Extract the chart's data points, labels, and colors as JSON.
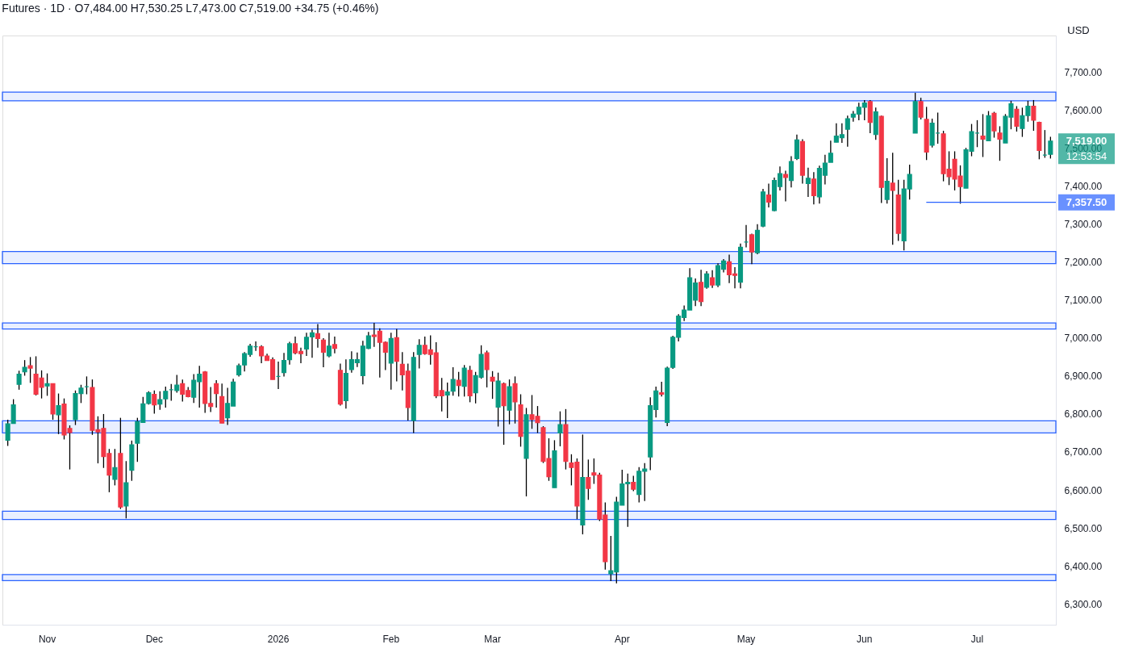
{
  "chart_data": {
    "type": "candlestick",
    "title": "Futures · 1D · O7,484.00 H7,530.25 L7,473.00 C7,519.00 +34.75 (+0.46%)",
    "categories": [
      null,
      null,
      null,
      null,
      null,
      null,
      null,
      "Nov",
      null,
      null,
      null,
      null,
      null,
      null,
      null,
      null,
      null,
      null,
      null,
      null,
      null,
      null,
      null,
      null,
      null,
      null,
      "Dec",
      null,
      null,
      null,
      null,
      null,
      null,
      null,
      null,
      null,
      null,
      null,
      null,
      null,
      null,
      null,
      null,
      null,
      null,
      null,
      null,
      null,
      "2026",
      null,
      null,
      null,
      null,
      null,
      null,
      null,
      null,
      null,
      null,
      null,
      null,
      null,
      null,
      null,
      null,
      null,
      null,
      null,
      "Feb",
      null,
      null,
      null,
      null,
      null,
      null,
      null,
      null,
      null,
      null,
      null,
      null,
      null,
      null,
      null,
      null,
      null,
      "Mar",
      null,
      null,
      null,
      null,
      null,
      null,
      null,
      null,
      null,
      null,
      null,
      null,
      null,
      null,
      null,
      null,
      null,
      null,
      null,
      null,
      null,
      null,
      "Apr",
      null,
      null,
      null,
      null,
      null,
      null,
      null,
      null,
      null,
      null,
      null,
      null,
      null,
      null,
      null,
      null,
      null,
      null,
      null,
      null,
      null,
      "May",
      null,
      null,
      null,
      null,
      null,
      null,
      null,
      null,
      null,
      null,
      null,
      null,
      null,
      null,
      null,
      null,
      null,
      null,
      null,
      null,
      "Jun",
      null,
      null,
      null,
      null,
      null,
      null,
      null,
      null,
      null,
      null,
      null,
      null,
      null,
      null,
      null,
      null,
      null,
      null,
      null,
      "Jul",
      null,
      null,
      null,
      null,
      null,
      null,
      null,
      null,
      null,
      null,
      null,
      null,
      null
    ],
    "ohlc": [
      [
        6731,
        6785,
        6716,
        6774
      ],
      [
        6775,
        6839,
        6775,
        6824
      ],
      [
        6878,
        6914,
        6864,
        6905
      ],
      [
        6911,
        6942,
        6901,
        6923
      ],
      [
        6927,
        6950,
        6882,
        6921
      ],
      [
        6905,
        6952,
        6849,
        6852
      ],
      [
        6895,
        6915,
        6841,
        6870
      ],
      [
        6874,
        6907,
        6848,
        6880
      ],
      [
        6880,
        6880,
        6785,
        6800
      ],
      [
        6798,
        6854,
        6747,
        6822
      ],
      [
        6826,
        6841,
        6733,
        6745
      ],
      [
        6762,
        6770,
        6654,
        6751
      ],
      [
        6785,
        6862,
        6771,
        6854
      ],
      [
        6854,
        6877,
        6829,
        6868
      ],
      [
        6872,
        6899,
        6852,
        6872
      ],
      [
        6870,
        6891,
        6745,
        6757
      ],
      [
        6759,
        6794,
        6670,
        6753
      ],
      [
        6762,
        6800,
        6658,
        6688
      ],
      [
        6696,
        6708,
        6594,
        6639
      ],
      [
        6628,
        6708,
        6612,
        6659
      ],
      [
        6696,
        6790,
        6550,
        6555
      ],
      [
        6558,
        6676,
        6525,
        6619
      ],
      [
        6652,
        6730,
        6624,
        6719
      ],
      [
        6723,
        6790,
        6674,
        6780
      ],
      [
        6778,
        6845,
        6778,
        6827
      ],
      [
        6828,
        6860,
        6825,
        6856
      ],
      [
        6852,
        6862,
        6801,
        6824
      ],
      [
        6826,
        6860,
        6811,
        6838
      ],
      [
        6840,
        6872,
        6817,
        6860
      ],
      [
        6864,
        6879,
        6835,
        6864
      ],
      [
        6862,
        6903,
        6856,
        6876
      ],
      [
        6880,
        6891,
        6833,
        6852
      ],
      [
        6862,
        6871,
        6844,
        6846
      ],
      [
        6844,
        6905,
        6829,
        6889
      ],
      [
        6885,
        6927,
        6817,
        6905
      ],
      [
        6911,
        6913,
        6803,
        6828
      ],
      [
        6828,
        6871,
        6805,
        6820
      ],
      [
        6880,
        6889,
        6817,
        6854
      ],
      [
        6846,
        6880,
        6776,
        6776
      ],
      [
        6790,
        6869,
        6771,
        6828
      ],
      [
        6821,
        6893,
        6821,
        6884
      ],
      [
        6903,
        6933,
        6899,
        6927
      ],
      [
        6929,
        6963,
        6912,
        6959
      ],
      [
        6957,
        6985,
        6951,
        6979
      ],
      [
        6977,
        6991,
        6966,
        6977
      ],
      [
        6977,
        6981,
        6934,
        6953
      ],
      [
        6953,
        6959,
        6941,
        6941
      ],
      [
        6943,
        6949,
        6891,
        6891
      ],
      [
        6899,
        6938,
        6866,
        6899
      ],
      [
        6909,
        6961,
        6899,
        6941
      ],
      [
        6943,
        6990,
        6930,
        6985
      ],
      [
        6985,
        7004,
        6957,
        6961
      ],
      [
        6965,
        6975,
        6934,
        6959
      ],
      [
        6971,
        7014,
        6953,
        7002
      ],
      [
        7003,
        7022,
        6948,
        7014
      ],
      [
        7012,
        7037,
        6975,
        6999
      ],
      [
        6995,
        7000,
        6923,
        6963
      ],
      [
        6953,
        7014,
        6949,
        6979
      ],
      [
        6983,
        7004,
        6960,
        6973
      ],
      [
        6915,
        6933,
        6822,
        6826
      ],
      [
        6835,
        6944,
        6814,
        6907
      ],
      [
        6917,
        6965,
        6909,
        6943
      ],
      [
        6935,
        6962,
        6924,
        6943
      ],
      [
        6901,
        6993,
        6878,
        6979
      ],
      [
        6973,
        7016,
        6971,
        7006
      ],
      [
        7008,
        7040,
        6977,
        7004
      ],
      [
        7018,
        7026,
        6896,
        6989
      ],
      [
        6989,
        6991,
        6916,
        6963
      ],
      [
        6934,
        7014,
        6864,
        6999
      ],
      [
        7001,
        7024,
        6886,
        6939
      ],
      [
        6931,
        6963,
        6862,
        6903
      ],
      [
        6913,
        6933,
        6783,
        6817
      ],
      [
        6783,
        6963,
        6750,
        6949
      ],
      [
        6957,
        6997,
        6920,
        6981
      ],
      [
        6981,
        7004,
        6956,
        6959
      ],
      [
        6969,
        7007,
        6930,
        6957
      ],
      [
        6961,
        6989,
        6842,
        6848
      ],
      [
        6862,
        6895,
        6807,
        6848
      ],
      [
        6850,
        6883,
        6789,
        6858
      ],
      [
        6860,
        6923,
        6848,
        6891
      ],
      [
        6889,
        6911,
        6846,
        6875
      ],
      [
        6873,
        6929,
        6846,
        6921
      ],
      [
        6915,
        6927,
        6831,
        6848
      ],
      [
        6856,
        6911,
        6828,
        6901
      ],
      [
        6897,
        6981,
        6893,
        6957
      ],
      [
        6961,
        6967,
        6870,
        6917
      ],
      [
        6897,
        6913,
        6840,
        6887
      ],
      [
        6818,
        6909,
        6767,
        6887
      ],
      [
        6880,
        6883,
        6719,
        6822
      ],
      [
        6810,
        6891,
        6773,
        6872
      ],
      [
        6880,
        6899,
        6775,
        6832
      ],
      [
        6824,
        6852,
        6714,
        6741
      ],
      [
        6683,
        6816,
        6583,
        6798
      ],
      [
        6798,
        6850,
        6761,
        6786
      ],
      [
        6794,
        6821,
        6750,
        6777
      ],
      [
        6764,
        6768,
        6671,
        6675
      ],
      [
        6683,
        6736,
        6624,
        6635
      ],
      [
        6606,
        6731,
        6606,
        6703
      ],
      [
        6750,
        6807,
        6715,
        6772
      ],
      [
        6772,
        6813,
        6654,
        6675
      ],
      [
        6671,
        6694,
        6612,
        6659
      ],
      [
        6673,
        6683,
        6523,
        6558
      ],
      [
        6508,
        6746,
        6483,
        6633
      ],
      [
        6633,
        6680,
        6574,
        6604
      ],
      [
        6645,
        6683,
        6616,
        6639
      ],
      [
        6639,
        6645,
        6518,
        6523
      ],
      [
        6534,
        6567,
        6390,
        6411
      ],
      [
        6379,
        6479,
        6360,
        6387
      ],
      [
        6384,
        6582,
        6354,
        6568
      ],
      [
        6560,
        6653,
        6560,
        6616
      ],
      [
        6616,
        6643,
        6503,
        6620
      ],
      [
        6620,
        6637,
        6597,
        6602
      ],
      [
        6588,
        6660,
        6567,
        6649
      ],
      [
        6649,
        6671,
        6571,
        6655
      ],
      [
        6687,
        6844,
        6652,
        6822
      ],
      [
        6812,
        6872,
        6791,
        6861
      ],
      [
        6856,
        6885,
        6846,
        6852
      ],
      [
        6778,
        6925,
        6768,
        6921
      ],
      [
        6923,
        7006,
        6919,
        7002
      ],
      [
        7002,
        7063,
        6991,
        7058
      ],
      [
        7054,
        7086,
        7045,
        7074
      ],
      [
        7074,
        7184,
        7074,
        7159
      ],
      [
        7100,
        7157,
        7084,
        7145
      ],
      [
        7147,
        7180,
        7084,
        7096
      ],
      [
        7134,
        7176,
        7130,
        7169
      ],
      [
        7159,
        7179,
        7132,
        7140
      ],
      [
        7140,
        7197,
        7134,
        7191
      ],
      [
        7181,
        7208,
        7173,
        7203
      ],
      [
        7201,
        7220,
        7145,
        7167
      ],
      [
        7169,
        7187,
        7131,
        7165
      ],
      [
        7147,
        7249,
        7131,
        7239
      ],
      [
        7253,
        7298,
        7239,
        7253
      ],
      [
        7272,
        7275,
        7195,
        7227
      ],
      [
        7225,
        7300,
        7221,
        7284
      ],
      [
        7295,
        7393,
        7292,
        7385
      ],
      [
        7377,
        7407,
        7344,
        7358
      ],
      [
        7336,
        7423,
        7334,
        7415
      ],
      [
        7399,
        7452,
        7389,
        7433
      ],
      [
        7431,
        7441,
        7360,
        7423
      ],
      [
        7415,
        7479,
        7397,
        7465
      ],
      [
        7473,
        7536,
        7469,
        7522
      ],
      [
        7518,
        7524,
        7407,
        7429
      ],
      [
        7407,
        7449,
        7372,
        7421
      ],
      [
        7419,
        7437,
        7352,
        7375
      ],
      [
        7372,
        7454,
        7354,
        7447
      ],
      [
        7429,
        7483,
        7405,
        7461
      ],
      [
        7463,
        7520,
        7463,
        7487
      ],
      [
        7516,
        7566,
        7516,
        7532
      ],
      [
        7528,
        7566,
        7514,
        7536
      ],
      [
        7550,
        7586,
        7504,
        7578
      ],
      [
        7582,
        7598,
        7570,
        7590
      ],
      [
        7590,
        7620,
        7574,
        7608
      ],
      [
        7608,
        7627,
        7574,
        7619
      ],
      [
        7623,
        7627,
        7540,
        7568
      ],
      [
        7536,
        7607,
        7522,
        7596
      ],
      [
        7584,
        7586,
        7356,
        7397
      ],
      [
        7365,
        7474,
        7354,
        7413
      ],
      [
        7408,
        7488,
        7246,
        7389
      ],
      [
        7377,
        7417,
        7256,
        7276
      ],
      [
        7256,
        7417,
        7231,
        7393
      ],
      [
        7393,
        7457,
        7365,
        7431
      ],
      [
        7540,
        7646,
        7540,
        7623
      ],
      [
        7623,
        7633,
        7576,
        7582
      ],
      [
        7576,
        7609,
        7469,
        7490
      ],
      [
        7508,
        7578,
        7502,
        7566
      ],
      [
        7540,
        7594,
        7512,
        7540
      ],
      [
        7538,
        7546,
        7413,
        7433
      ],
      [
        7445,
        7492,
        7403,
        7425
      ],
      [
        7471,
        7492,
        7389,
        7419
      ],
      [
        7427,
        7455,
        7354,
        7399
      ],
      [
        7395,
        7501,
        7395,
        7496
      ],
      [
        7492,
        7564,
        7479,
        7544
      ],
      [
        7540,
        7574,
        7503,
        7540
      ],
      [
        7532,
        7590,
        7477,
        7524
      ],
      [
        7520,
        7598,
        7520,
        7586
      ],
      [
        7592,
        7596,
        7528,
        7546
      ],
      [
        7540,
        7558,
        7467,
        7524
      ],
      [
        7514,
        7590,
        7514,
        7584
      ],
      [
        7582,
        7625,
        7550,
        7617
      ],
      [
        7603,
        7611,
        7544,
        7558
      ],
      [
        7552,
        7607,
        7530,
        7586
      ],
      [
        7586,
        7625,
        7570,
        7611
      ],
      [
        7611,
        7627,
        7546,
        7574
      ],
      [
        7568,
        7570,
        7471,
        7494
      ],
      [
        7482,
        7548,
        7475,
        7482
      ],
      [
        7484,
        7530.25,
        7473,
        7519
      ]
    ],
    "colors": [
      "#089981",
      "#089981",
      "#089981",
      "#089981",
      "#f23645",
      "#f23645",
      "#f23645",
      "#089981",
      "#f23645",
      "#089981",
      "#f23645",
      "#f23645",
      "#089981",
      "#089981",
      "#089981",
      "#f23645",
      "#f23645",
      "#f23645",
      "#f23645",
      "#089981",
      "#f23645",
      "#089981",
      "#089981",
      "#089981",
      "#089981",
      "#089981",
      "#f23645",
      "#089981",
      "#089981",
      "#089981",
      "#089981",
      "#f23645",
      "#f23645",
      "#089981",
      "#089981",
      "#f23645",
      "#f23645",
      "#f23645",
      "#f23645",
      "#089981",
      "#089981",
      "#089981",
      "#089981",
      "#089981",
      "#089981",
      "#f23645",
      "#f23645",
      "#f23645",
      "#089981",
      "#089981",
      "#089981",
      "#f23645",
      "#f23645",
      "#089981",
      "#089981",
      "#f23645",
      "#f23645",
      "#089981",
      "#f23645",
      "#f23645",
      "#089981",
      "#089981",
      "#089981",
      "#089981",
      "#089981",
      "#f23645",
      "#f23645",
      "#f23645",
      "#089981",
      "#f23645",
      "#f23645",
      "#f23645",
      "#089981",
      "#089981",
      "#f23645",
      "#f23645",
      "#f23645",
      "#f23645",
      "#089981",
      "#089981",
      "#f23645",
      "#089981",
      "#f23645",
      "#089981",
      "#089981",
      "#f23645",
      "#f23645",
      "#089981",
      "#f23645",
      "#089981",
      "#f23645",
      "#f23645",
      "#089981",
      "#f23645",
      "#f23645",
      "#f23645",
      "#f23645",
      "#089981",
      "#089981",
      "#f23645",
      "#f23645",
      "#f23645",
      "#089981",
      "#f23645",
      "#f23645",
      "#f23645",
      "#f23645",
      "#089981",
      "#089981",
      "#089981",
      "#089981",
      "#f23645",
      "#089981",
      "#089981",
      "#089981",
      "#089981",
      "#f23645",
      "#089981",
      "#089981",
      "#089981",
      "#089981",
      "#089981",
      "#089981",
      "#f23645",
      "#089981",
      "#f23645",
      "#089981",
      "#089981",
      "#f23645",
      "#f23645",
      "#089981",
      "#089981",
      "#f23645",
      "#089981",
      "#089981",
      "#f23645",
      "#089981",
      "#089981",
      "#f23645",
      "#089981",
      "#089981",
      "#f23645",
      "#089981",
      "#f23645",
      "#089981",
      "#089981",
      "#089981",
      "#089981",
      "#089981",
      "#089981",
      "#089981",
      "#089981",
      "#089981",
      "#f23645",
      "#089981",
      "#f23645",
      "#089981",
      "#f23645",
      "#f23645",
      "#089981",
      "#089981",
      "#089981",
      "#f23645",
      "#f23645",
      "#089981",
      "#089981",
      "#f23645",
      "#f23645",
      "#f23645",
      "#f23645",
      "#089981",
      "#089981",
      "#089981",
      "#f23645",
      "#089981",
      "#f23645",
      "#f23645",
      "#089981",
      "#089981",
      "#f23645",
      "#089981",
      "#089981",
      "#f23645",
      "#f23645",
      "#089981",
      "#089981"
    ],
    "ylim": [
      6245,
      7797
    ],
    "yticks": [
      {
        "value": 6300,
        "label": "6,300.00"
      },
      {
        "value": 6400,
        "label": "6,400.00"
      },
      {
        "value": 6500,
        "label": "6,500.00"
      },
      {
        "value": 6600,
        "label": "6,600.00"
      },
      {
        "value": 6700,
        "label": "6,700.00"
      },
      {
        "value": 6800,
        "label": "6,800.00"
      },
      {
        "value": 6900,
        "label": "6,900.00"
      },
      {
        "value": 7000,
        "label": "7,000.00"
      },
      {
        "value": 7100,
        "label": "7,100.00"
      },
      {
        "value": 7200,
        "label": "7,200.00"
      },
      {
        "value": 7300,
        "label": "7,300.00"
      },
      {
        "value": 7400,
        "label": "7,400.00"
      },
      {
        "value": 7500,
        "label": "7,500.00"
      },
      {
        "value": 7600,
        "label": "7,600.00"
      },
      {
        "value": 7700,
        "label": "7,700.00"
      }
    ],
    "bands": [
      {
        "axis": "y",
        "from": 7625,
        "to": 7648,
        "color": "#2962ff"
      },
      {
        "axis": "y",
        "from": 7196,
        "to": 7228,
        "color": "#2962ff"
      },
      {
        "axis": "y",
        "from": 7024,
        "to": 7040,
        "color": "#2962ff"
      },
      {
        "axis": "y",
        "from": 6750,
        "to": 6782,
        "color": "#2962ff"
      },
      {
        "axis": "y",
        "from": 6522,
        "to": 6544,
        "color": "#2962ff"
      },
      {
        "axis": "y",
        "from": 6361,
        "to": 6377,
        "color": "#2962ff"
      }
    ],
    "ref_lines": [
      {
        "axis": "y",
        "value": 7357.5,
        "label": "7,357.50",
        "color": "#2962ff"
      }
    ],
    "annotations": [
      "USD",
      "7,519.00",
      "12:53:54"
    ]
  }
}
